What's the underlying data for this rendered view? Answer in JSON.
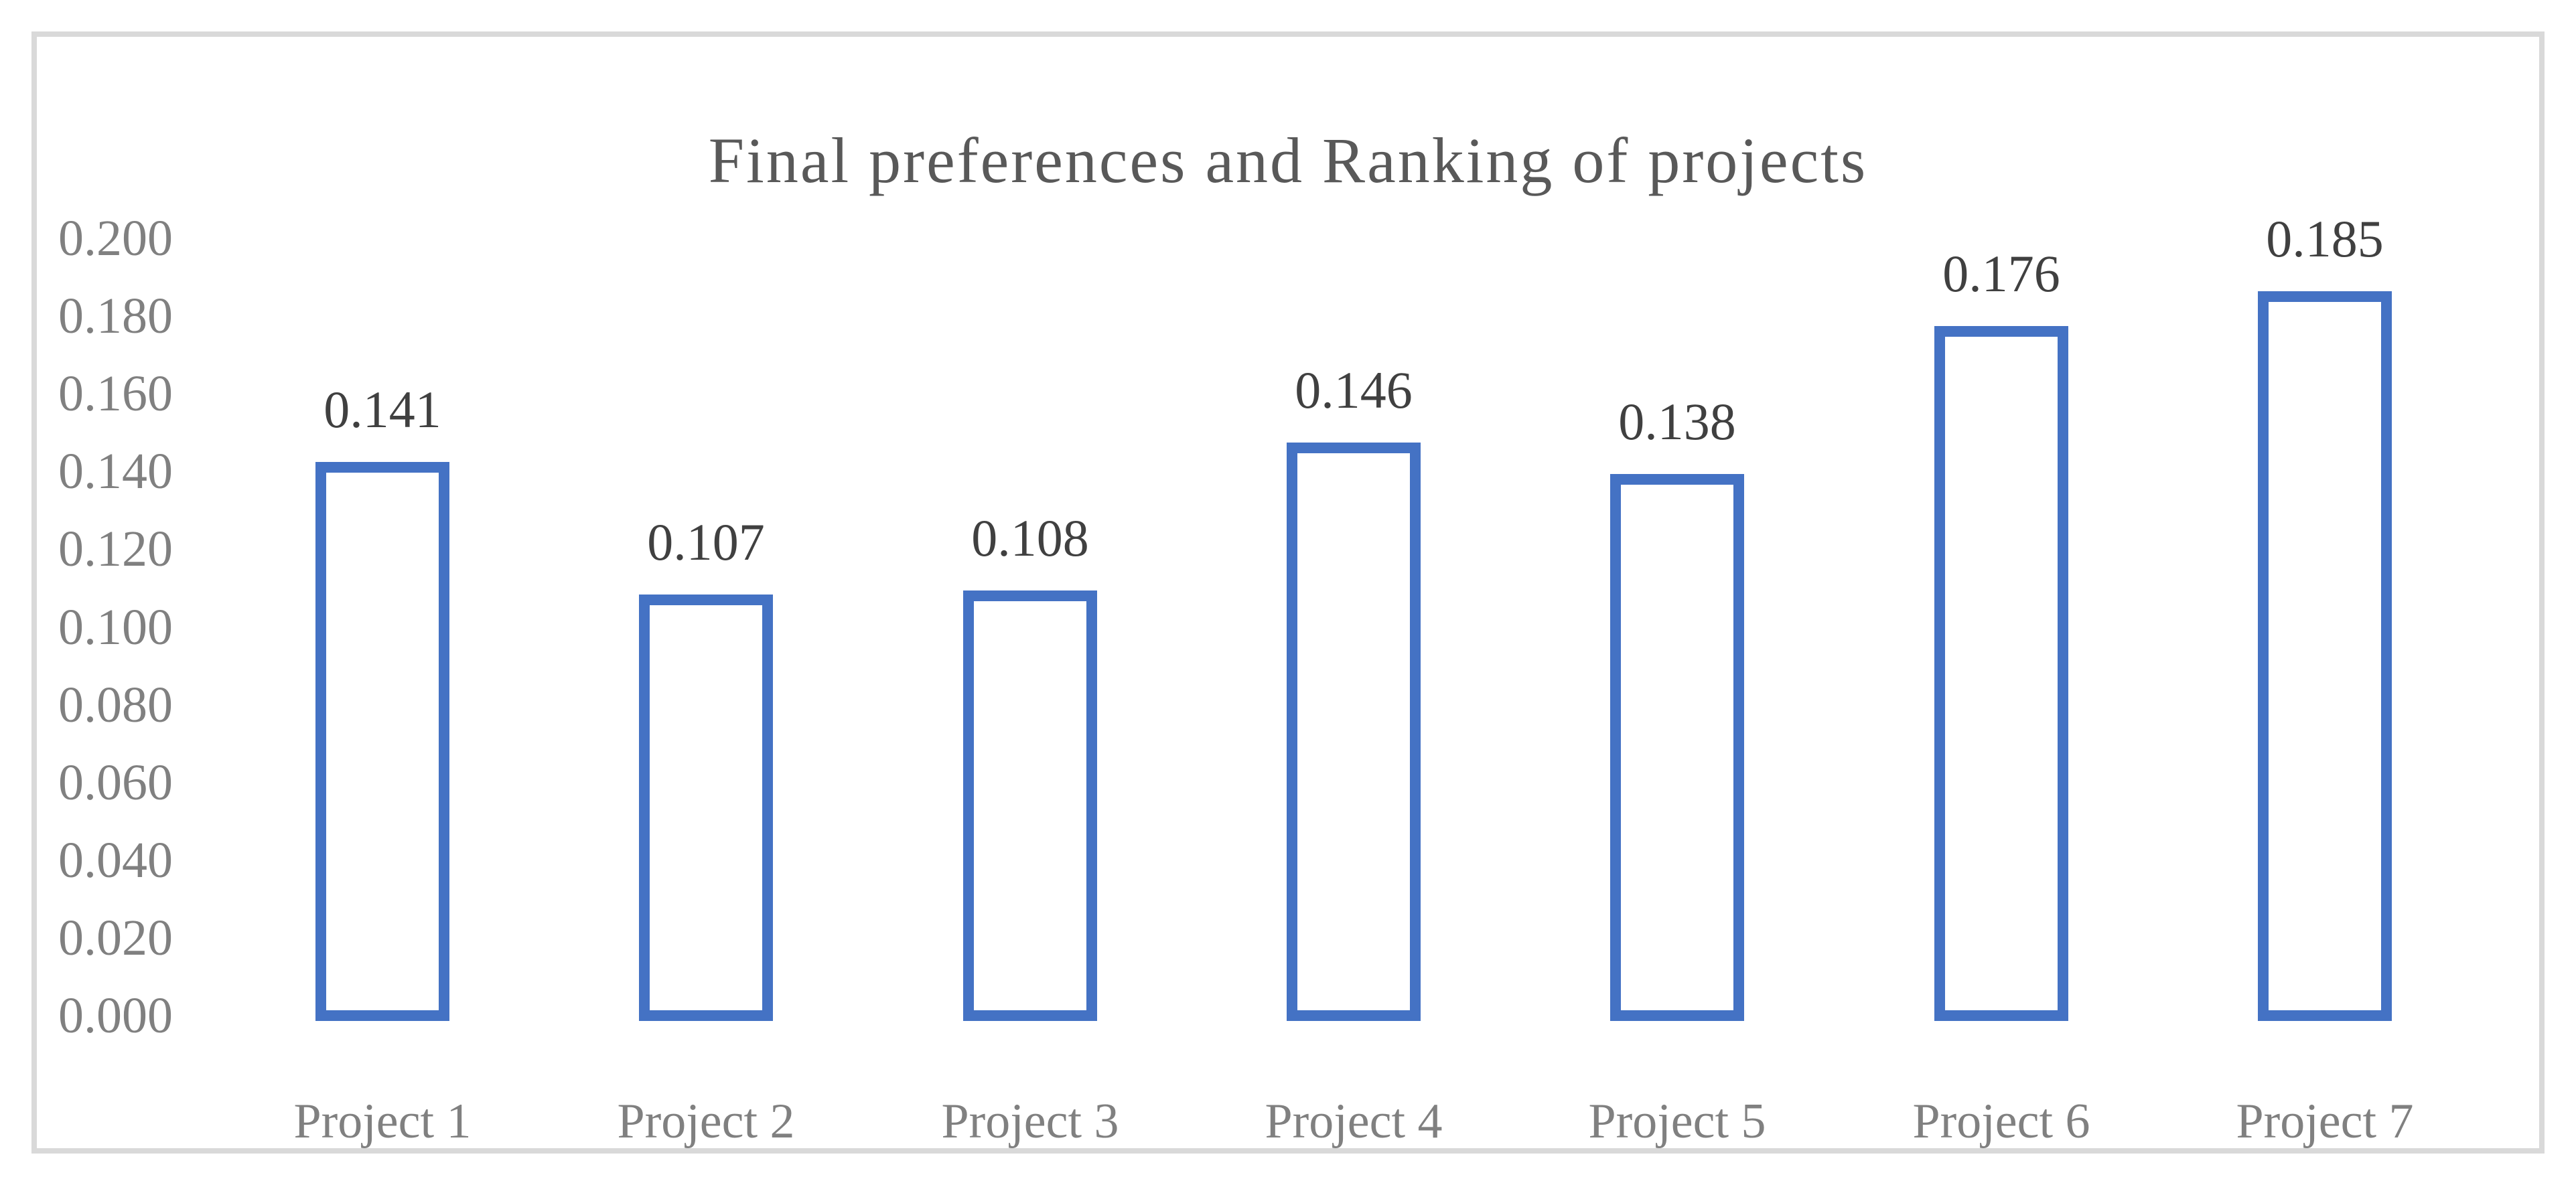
{
  "chart_data": {
    "type": "bar",
    "title": "Final preferences and Ranking of projects",
    "categories": [
      "Project 1",
      "Project 2",
      "Project 3",
      "Project 4",
      "Project 5",
      "Project 6",
      "Project 7"
    ],
    "values": [
      0.141,
      0.107,
      0.108,
      0.146,
      0.138,
      0.176,
      0.185
    ],
    "data_labels": [
      "0.141",
      "0.107",
      "0.108",
      "0.146",
      "0.138",
      "0.176",
      "0.185"
    ],
    "y_tick_labels": [
      "0.000",
      "0.020",
      "0.040",
      "0.060",
      "0.080",
      "0.100",
      "0.120",
      "0.140",
      "0.160",
      "0.180",
      "0.200"
    ],
    "ylim": [
      0.0,
      0.2
    ],
    "y_tick_step": 0.02,
    "xlabel": "",
    "ylabel": "",
    "grid": false,
    "legend": "none",
    "bar_fill": "#ffffff",
    "bar_border_color": "#4472c4",
    "frame_border_color": "#d9d9d9",
    "title_color": "#595959",
    "axis_label_color": "#808080",
    "data_label_color": "#404040",
    "background_color": "#ffffff"
  }
}
